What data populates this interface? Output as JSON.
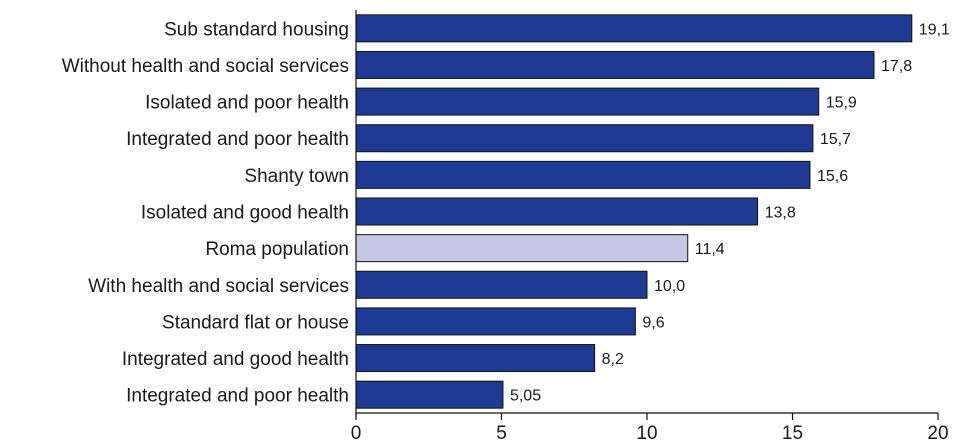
{
  "chart_data": {
    "type": "bar",
    "orientation": "horizontal",
    "categories": [
      "Sub standard housing",
      "Without health and social services",
      "Isolated and poor health",
      "Integrated and poor health",
      "Shanty town",
      "Isolated and good health",
      "Roma population",
      "With health and social services",
      "Standard flat or house",
      "Integrated and good health",
      "Integrated and poor health"
    ],
    "values": [
      19.1,
      17.8,
      15.9,
      15.7,
      15.6,
      13.8,
      11.4,
      10.0,
      9.6,
      8.2,
      5.05
    ],
    "value_labels": [
      "19,1",
      "17,8",
      "15,9",
      "15,7",
      "15,6",
      "13,8",
      "11,4",
      "10,0",
      "9,6",
      "8,2",
      "5,05"
    ],
    "bar_colors": [
      "#1f3a93",
      "#1f3a93",
      "#1f3a93",
      "#1f3a93",
      "#1f3a93",
      "#1f3a93",
      "#c5c8e4",
      "#1f3a93",
      "#1f3a93",
      "#1f3a93",
      "#1f3a93"
    ],
    "xlim": [
      0,
      20
    ],
    "x_ticks": [
      0,
      5,
      10,
      15,
      20
    ],
    "grid": false,
    "title": "",
    "xlabel": "",
    "ylabel": ""
  }
}
